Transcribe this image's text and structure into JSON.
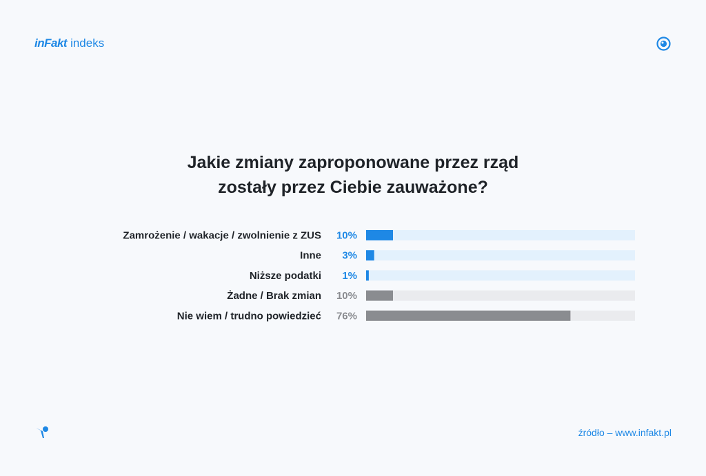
{
  "header": {
    "brand": "inFakt",
    "brand_sub": "indeks",
    "eye_icon": "eye-icon"
  },
  "chart_data": {
    "type": "bar",
    "orientation": "horizontal",
    "title_lines": [
      "Jakie zmiany zaproponowane przez rząd",
      "zostały przez Ciebie zauważone?"
    ],
    "categories": [
      "Zamrożenie / wakacje / zwolnienie z ZUS",
      "Inne",
      "Niższe podatki",
      "Żadne / Brak zmian",
      "Nie wiem / trudno powiedzieć"
    ],
    "values": [
      10,
      3,
      1,
      10,
      76
    ],
    "value_labels": [
      "10%",
      "3%",
      "1%",
      "10%",
      "76%"
    ],
    "xlim": [
      0,
      100
    ],
    "colors": {
      "bar_blue": "#1e88e5",
      "track_blue": "#e3f1fd",
      "bar_gray": "#8a8c90",
      "track_gray": "#eaebee",
      "value_blue": "#1e88e5",
      "value_gray": "#8a8c90"
    },
    "row_color_group": [
      "blue",
      "blue",
      "blue",
      "gray",
      "gray"
    ]
  },
  "footer": {
    "bird_icon": "bird-icon",
    "source": "źródło – www.infakt.pl"
  }
}
